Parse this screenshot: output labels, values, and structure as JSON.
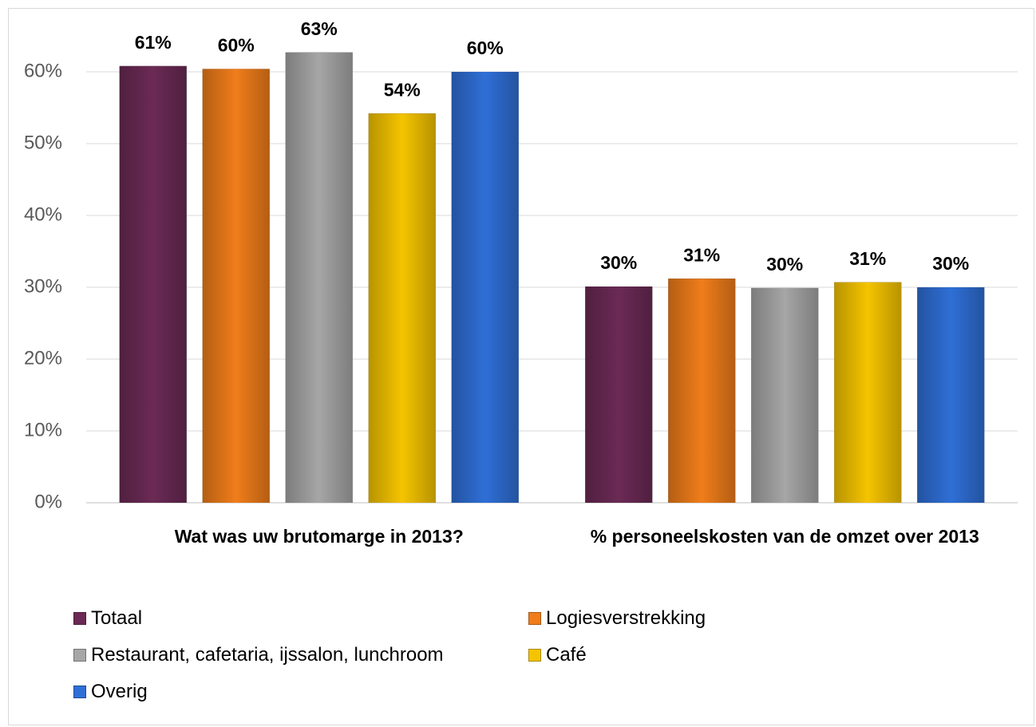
{
  "chart_data": {
    "type": "bar",
    "categories": [
      "Wat was uw brutomarge in 2013?",
      "% personeelskosten van de omzet over 2013"
    ],
    "series": [
      {
        "name": "Totaal",
        "color": "#6b2a55",
        "values": [
          60.8,
          30.1
        ],
        "value_labels": [
          "61%",
          "30%"
        ]
      },
      {
        "name": "Logiesverstrekking",
        "color": "#f07d1a",
        "values": [
          60.4,
          31.2
        ],
        "value_labels": [
          "60%",
          "31%"
        ]
      },
      {
        "name": "Restaurant, cafetaria, ijssalon, lunchroom",
        "color": "#a6a6a6",
        "values": [
          62.7,
          29.9
        ],
        "value_labels": [
          "63%",
          "30%"
        ]
      },
      {
        "name": "Café",
        "color": "#f5c400",
        "values": [
          54.2,
          30.7
        ],
        "value_labels": [
          "54%",
          "31%"
        ]
      },
      {
        "name": "Overig",
        "color": "#2f6fd6",
        "values": [
          60.0,
          30.0
        ],
        "value_labels": [
          "60%",
          "30%"
        ]
      }
    ],
    "ylim": [
      0,
      70
    ],
    "yticks": [
      {
        "value": 0,
        "label": "0%"
      },
      {
        "value": 10,
        "label": "10%"
      },
      {
        "value": 20,
        "label": "20%"
      },
      {
        "value": 30,
        "label": "30%"
      },
      {
        "value": 40,
        "label": "40%"
      },
      {
        "value": 50,
        "label": "50%"
      },
      {
        "value": 60,
        "label": "60%"
      }
    ],
    "grid": true,
    "legend": "bottom"
  }
}
